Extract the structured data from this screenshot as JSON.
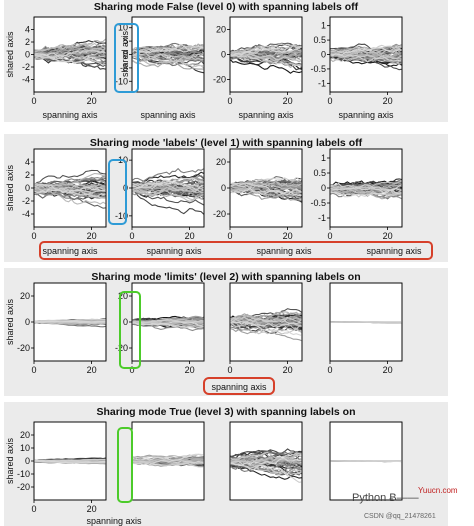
{
  "chart_data": [
    {
      "type": "line",
      "title": "Sharing mode False (level 0) with spanning labels off",
      "ylabel": "shared axis",
      "xlabel": "spanning axis",
      "x_range": [
        0,
        25
      ],
      "series_per_axes": 40,
      "subplots": [
        {
          "ylim": [
            -6,
            6
          ],
          "yticks": [
            -4,
            -2,
            0,
            2,
            4
          ],
          "xticks": [
            0,
            20
          ],
          "spread": 1.0
        },
        {
          "ylim": [
            -14,
            14
          ],
          "yticks": [
            -10,
            -5,
            0,
            5,
            10
          ],
          "xticks": [],
          "spread": 2.5
        },
        {
          "ylim": [
            -30,
            30
          ],
          "yticks": [
            -20,
            0,
            20
          ],
          "xticks": [
            0,
            20
          ],
          "spread": 5.0
        },
        {
          "ylim": [
            -1.3,
            1.3
          ],
          "yticks": [
            -1,
            -0.5,
            0,
            0.5,
            1
          ],
          "xticks": [
            0,
            20
          ],
          "spread": 0.2
        }
      ]
    },
    {
      "type": "line",
      "title": "Sharing mode 'labels' (level 1) with spanning labels off",
      "ylabel": "shared axis",
      "xlabel": "spanning axis",
      "x_range": [
        0,
        25
      ],
      "series_per_axes": 40,
      "subplots": [
        {
          "ylim": [
            -6,
            6
          ],
          "yticks": [
            -4,
            -2,
            0,
            2,
            4
          ],
          "xticks": [
            0,
            20
          ],
          "spread": 1.0
        },
        {
          "ylim": [
            -14,
            14
          ],
          "yticks": [
            10,
            0,
            -10
          ],
          "xticks": [
            0,
            20
          ],
          "spread": 2.5
        },
        {
          "ylim": [
            -30,
            30
          ],
          "yticks": [
            20,
            0,
            -20
          ],
          "xticks": [
            0,
            20
          ],
          "spread": 5.0
        },
        {
          "ylim": [
            -1.3,
            1.3
          ],
          "yticks": [
            1,
            0.5,
            0,
            -0.5,
            -1
          ],
          "xticks": [
            0,
            20
          ],
          "spread": 0.2
        }
      ]
    },
    {
      "type": "line",
      "title": "Sharing mode 'limits' (level 2) with spanning labels on",
      "ylabel": "shared axis",
      "xlabel": "spanning axis",
      "x_range": [
        0,
        25
      ],
      "series_per_axes": 40,
      "subplots": [
        {
          "ylim": [
            -30,
            30
          ],
          "yticks": [
            20,
            0,
            -20
          ],
          "xticks": [
            0,
            20
          ],
          "spread": 1.0
        },
        {
          "ylim": [
            -30,
            30
          ],
          "yticks": [
            20,
            0,
            -20
          ],
          "xticks": [
            0,
            20
          ],
          "spread": 2.5
        },
        {
          "ylim": [
            -30,
            30
          ],
          "yticks": [],
          "xticks": [
            0,
            20
          ],
          "spread": 5.0
        },
        {
          "ylim": [
            -30,
            30
          ],
          "yticks": [],
          "xticks": [
            0,
            20
          ],
          "spread": 0.2
        }
      ]
    },
    {
      "type": "line",
      "title": "Sharing mode True (level 3) with spanning labels on",
      "ylabel": "shared axis",
      "xlabel": "spanning axis",
      "x_range": [
        0,
        25
      ],
      "series_per_axes": 40,
      "subplots": [
        {
          "ylim": [
            -30,
            30
          ],
          "yticks": [
            20,
            10,
            0,
            -10,
            -20
          ],
          "xticks": [
            0,
            20
          ],
          "spread": 1.0
        },
        {
          "ylim": [
            -30,
            30
          ],
          "yticks": [],
          "xticks": [],
          "spread": 2.5
        },
        {
          "ylim": [
            -30,
            30
          ],
          "yticks": [],
          "xticks": [],
          "spread": 5.0
        },
        {
          "ylim": [
            -30,
            30
          ],
          "yticks": [],
          "xticks": [],
          "spread": 0.2
        }
      ]
    }
  ],
  "highlight_colors": {
    "blue": "#2e9bd6",
    "red": "#d6402a",
    "green": "#4ccb2a"
  },
  "watermark": {
    "brand": "Python Ƀ——",
    "site": "Yuucn.com",
    "csdn": "CSDN @qq_21478261"
  }
}
